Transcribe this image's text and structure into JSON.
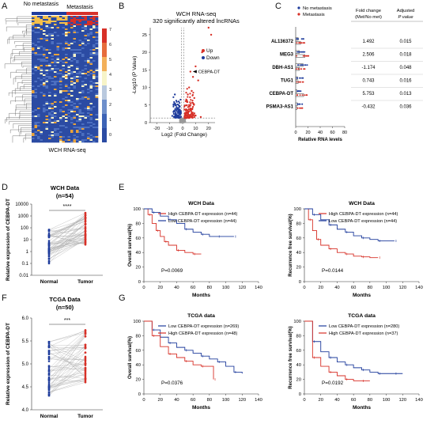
{
  "panel_labels": [
    "A",
    "B",
    "C",
    "D",
    "E",
    "F",
    "G"
  ],
  "colors": {
    "red": "#d7312b",
    "blue": "#1f3c9c",
    "gray": "#9a9a9a",
    "heat_high": "#d73027",
    "heat_low": "#2b4ba3",
    "heat_mid": "#f7f4c8"
  },
  "panelA": {
    "header_left": "No metastasis",
    "header_right": "Metastasis",
    "footer": "WCH RNA-seq",
    "colorbar_ticks": [
      "7",
      "6",
      "5",
      "4",
      "3",
      "2",
      "1",
      "0"
    ]
  },
  "panelB": {
    "title_line1": "WCH RNA-seq",
    "title_line2": "320 significantly altered lncRNAs",
    "ylabel": "-Log10 (P Value)",
    "xlabel": "Log2 (Fold Change)",
    "legend_up": "Up",
    "legend_down": "Down",
    "annotation": "CEBPA-DT",
    "x_ticks": [
      "-20",
      "-10",
      "0",
      "10",
      "20"
    ],
    "y_ticks": [
      "0",
      "5",
      "10",
      "15",
      "20",
      "25"
    ]
  },
  "panelC": {
    "legend": [
      "No metastasis",
      "Metastasis"
    ],
    "col_fold": "Fold change\n(Met/No met)",
    "col_fold_l1": "Fold change",
    "col_fold_l2": "(Met/No met)",
    "col_p_l1": "Adjusted",
    "col_p_l2": "P value",
    "xlabel": "Relative RNA levels",
    "x_ticks": [
      "0",
      "20",
      "40",
      "60",
      "80"
    ],
    "rows": [
      {
        "gene": "AL136372",
        "fold": "1.492",
        "p": "0.015"
      },
      {
        "gene": "MEG3",
        "fold": "2.506",
        "p": "0.018"
      },
      {
        "gene": "DBH-AS1",
        "fold": "-1.174",
        "p": "0.048"
      },
      {
        "gene": "TUG1",
        "fold": "0.743",
        "p": "0.016"
      },
      {
        "gene": "CEBPA-DT",
        "fold": "5.753",
        "p": "0.013"
      },
      {
        "gene": "PSMA3-AS1",
        "fold": "-0.432",
        "p": "0.036"
      }
    ]
  },
  "panelD": {
    "title": "WCH Data",
    "n": "(n=54)",
    "ylabel": "Relative expression of CEBPA-DT",
    "y_ticks": [
      "10000",
      "1000",
      "100",
      "10",
      "1",
      "0.1",
      "0.01"
    ],
    "groups": [
      "Normal",
      "Tumor"
    ],
    "sig": "****"
  },
  "panelE": {
    "left": {
      "title": "WCH Data",
      "ylabel": "Overall survival(%)",
      "xlabel": "Months",
      "legend": [
        "High CEBPA-DT expression (n=44)",
        "Low CEBPA-DT expression (n=44)"
      ],
      "p": "P=0.0069"
    },
    "right": {
      "title": "WCH Data",
      "ylabel": "Recurrence free survival(%)",
      "xlabel": "Months",
      "legend": [
        "High CEBPA-DT expression (n=44)",
        "Low CEBPA-DT expression (n=44)"
      ],
      "p": "P=0.0144"
    },
    "x_ticks": [
      "0",
      "20",
      "40",
      "60",
      "80",
      "100",
      "120",
      "140"
    ],
    "y_ticks": [
      "0",
      "20",
      "40",
      "60",
      "80",
      "100"
    ]
  },
  "panelF": {
    "title": "TCGA Data",
    "n": "(n=50)",
    "ylabel": "Relative expression of CEBPA-DT",
    "y_ticks": [
      "6.0",
      "5.5",
      "5.0",
      "4.5",
      "4.0"
    ],
    "groups": [
      "Normal",
      "Tumor"
    ],
    "sig": "***"
  },
  "panelG": {
    "left": {
      "title": "TCGA data",
      "ylabel": "Overall survival(%)",
      "xlabel": "Months",
      "legend": [
        "Low CEBPA-DT expression (n=269)",
        "High CEBPA-DT expression (n=48)"
      ],
      "p": "P=0.0376"
    },
    "right": {
      "title": "TCGA data",
      "ylabel": "Recurrence free survival(%)",
      "xlabel": "Months",
      "legend": [
        "Low CEBPA-DT expression (n=280)",
        "High CEBPA-DT expression (n=37)"
      ],
      "p": "P=0.0192"
    },
    "x_ticks": [
      "0",
      "20",
      "40",
      "60",
      "80",
      "100",
      "120",
      "140"
    ],
    "y_ticks": [
      "0",
      "20",
      "40",
      "60",
      "80",
      "100"
    ]
  },
  "chart_data": [
    {
      "type": "heatmap",
      "panel": "A",
      "colorbar_range": [
        0,
        7
      ],
      "column_groups": [
        "No metastasis",
        "Metastasis"
      ]
    },
    {
      "type": "scatter",
      "panel": "B",
      "xlim": [
        -25,
        25
      ],
      "ylim": [
        0,
        27
      ],
      "threshold_y": 1.3,
      "threshold_x": [
        -1,
        1
      ],
      "highlight": {
        "label": "CEBPA-DT",
        "x": 6,
        "y": 14.5
      },
      "series": [
        {
          "name": "Up",
          "points": [
            [
              20,
              27
            ],
            [
              22,
              25
            ],
            [
              15,
              20
            ],
            [
              10,
              16
            ],
            [
              6,
              14.5
            ],
            [
              8,
              13
            ],
            [
              12,
              12
            ],
            [
              5,
              10
            ],
            [
              7,
              9
            ],
            [
              4,
              8
            ],
            [
              9,
              7
            ],
            [
              3,
              6
            ],
            [
              5,
              5
            ],
            [
              6,
              4
            ],
            [
              4,
              3.5
            ],
            [
              3,
              3
            ],
            [
              2.5,
              2.5
            ],
            [
              7,
              2.8
            ],
            [
              2,
              2
            ],
            [
              3.5,
              1.8
            ],
            [
              1.5,
              1.6
            ],
            [
              4.5,
              1.5
            ],
            [
              10,
              2
            ],
            [
              14,
              1.6
            ]
          ]
        },
        {
          "name": "Down",
          "points": [
            [
              -6,
              8
            ],
            [
              -3,
              6
            ],
            [
              -5,
              5
            ],
            [
              -4,
              4
            ],
            [
              -2,
              3.5
            ],
            [
              -7,
              3
            ],
            [
              -3,
              2.8
            ],
            [
              -2,
              2.2
            ],
            [
              -4.5,
              2
            ],
            [
              -6,
              1.7
            ],
            [
              -1.5,
              1.6
            ],
            [
              -3.5,
              1.5
            ],
            [
              -8,
              1.9
            ],
            [
              -2.5,
              4.5
            ]
          ]
        }
      ]
    },
    {
      "type": "bar",
      "panel": "C",
      "categories": [
        "AL136372",
        "MEG3",
        "DBH-AS1",
        "TUG1",
        "CEBPA-DT",
        "PSMA3-AS1"
      ],
      "series": [
        {
          "name": "No metastasis",
          "values": [
            4,
            6,
            12,
            3,
            2,
            3
          ]
        },
        {
          "name": "Metastasis",
          "values": [
            8,
            15,
            6,
            4,
            13,
            2
          ]
        }
      ],
      "xlim": [
        0,
        80
      ]
    },
    {
      "type": "scatter",
      "panel": "D",
      "yscale": "log",
      "ylim": [
        0.01,
        10000
      ],
      "groups": [
        "Normal",
        "Tumor"
      ],
      "n": 54,
      "significance": "****"
    },
    {
      "type": "line",
      "panel": "E-left",
      "xlim": [
        0,
        140
      ],
      "ylim": [
        0,
        100
      ],
      "series": [
        {
          "name": "High CEBPA-DT expression (n=44)",
          "x": [
            0,
            5,
            10,
            15,
            20,
            25,
            30,
            40,
            50,
            60,
            70
          ],
          "y": [
            100,
            92,
            80,
            70,
            62,
            55,
            50,
            43,
            40,
            38,
            38
          ]
        },
        {
          "name": "Low CEBPA-DT expression (n=44)",
          "x": [
            0,
            10,
            20,
            30,
            40,
            50,
            60,
            70,
            80,
            90,
            100,
            110
          ],
          "y": [
            100,
            95,
            90,
            85,
            80,
            72,
            68,
            65,
            62,
            62,
            62,
            62
          ]
        }
      ]
    },
    {
      "type": "line",
      "panel": "E-right",
      "xlim": [
        0,
        140
      ],
      "ylim": [
        0,
        100
      ],
      "series": [
        {
          "name": "High CEBPA-DT expression (n=44)",
          "x": [
            0,
            5,
            10,
            15,
            20,
            30,
            40,
            50,
            60,
            70,
            80,
            90
          ],
          "y": [
            100,
            85,
            70,
            58,
            50,
            45,
            40,
            38,
            35,
            34,
            33,
            33
          ]
        },
        {
          "name": "Low CEBPA-DT expression (n=44)",
          "x": [
            0,
            10,
            20,
            30,
            40,
            50,
            60,
            70,
            80,
            90,
            100,
            110
          ],
          "y": [
            100,
            92,
            85,
            78,
            72,
            68,
            63,
            60,
            58,
            56,
            56,
            56
          ]
        }
      ]
    },
    {
      "type": "scatter",
      "panel": "F",
      "ylim": [
        4.0,
        6.0
      ],
      "groups": [
        "Normal",
        "Tumor"
      ],
      "n": 50,
      "significance": "***"
    },
    {
      "type": "line",
      "panel": "G-left",
      "xlim": [
        0,
        140
      ],
      "ylim": [
        0,
        100
      ],
      "series": [
        {
          "name": "Low CEBPA-DT expression (n=269)",
          "x": [
            0,
            10,
            20,
            30,
            40,
            50,
            60,
            70,
            80,
            90,
            100,
            110,
            120
          ],
          "y": [
            100,
            88,
            78,
            70,
            64,
            60,
            56,
            52,
            48,
            44,
            38,
            30,
            28
          ]
        },
        {
          "name": "High CEBPA-DT expression (n=48)",
          "x": [
            0,
            10,
            20,
            30,
            40,
            50,
            60,
            70,
            80,
            85
          ],
          "y": [
            100,
            80,
            65,
            55,
            50,
            45,
            40,
            38,
            38,
            20
          ]
        }
      ]
    },
    {
      "type": "line",
      "panel": "G-right",
      "xlim": [
        0,
        140
      ],
      "ylim": [
        0,
        100
      ],
      "series": [
        {
          "name": "Low CEBPA-DT expression (n=280)",
          "x": [
            0,
            10,
            20,
            30,
            40,
            50,
            60,
            70,
            80,
            90,
            100,
            110,
            120
          ],
          "y": [
            100,
            72,
            58,
            50,
            44,
            40,
            36,
            33,
            30,
            28,
            28,
            28,
            28
          ]
        },
        {
          "name": "High CEBPA-DT expression (n=37)",
          "x": [
            0,
            10,
            20,
            30,
            40,
            50,
            60,
            70,
            80
          ],
          "y": [
            100,
            50,
            38,
            30,
            25,
            20,
            18,
            18,
            18
          ]
        }
      ]
    }
  ]
}
